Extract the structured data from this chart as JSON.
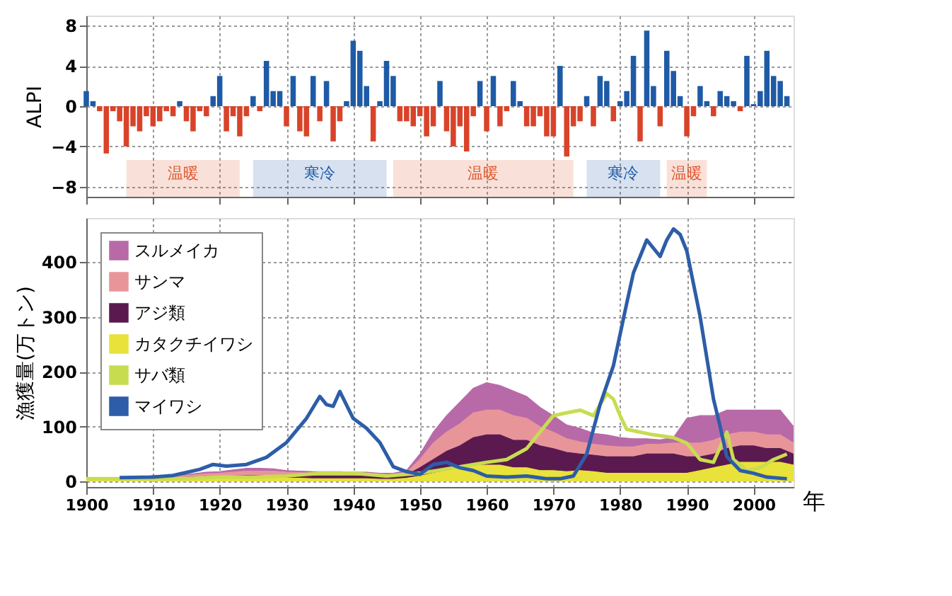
{
  "chart_data": [
    {
      "type": "bar",
      "ylabel": "ALPI",
      "x": [
        1900,
        1901,
        1902,
        1903,
        1904,
        1905,
        1906,
        1907,
        1908,
        1909,
        1910,
        1911,
        1912,
        1913,
        1914,
        1915,
        1916,
        1917,
        1918,
        1919,
        1920,
        1921,
        1922,
        1923,
        1924,
        1925,
        1926,
        1927,
        1928,
        1929,
        1930,
        1931,
        1932,
        1933,
        1934,
        1935,
        1936,
        1937,
        1938,
        1939,
        1940,
        1941,
        1942,
        1943,
        1944,
        1945,
        1946,
        1947,
        1948,
        1949,
        1950,
        1951,
        1952,
        1953,
        1954,
        1955,
        1956,
        1957,
        1958,
        1959,
        1960,
        1961,
        1962,
        1963,
        1964,
        1965,
        1966,
        1967,
        1968,
        1969,
        1970,
        1971,
        1972,
        1973,
        1974,
        1975,
        1976,
        1977,
        1978,
        1979,
        1980,
        1981,
        1982,
        1983,
        1984,
        1985,
        1986,
        1987,
        1988,
        1989,
        1990,
        1991,
        1992,
        1993,
        1994,
        1995,
        1996,
        1997,
        1998,
        1999,
        2000,
        2001,
        2002,
        2003,
        2004,
        2005
      ],
      "values": [
        1.5,
        0.5,
        -0.5,
        -4.7,
        -0.5,
        -1.5,
        -4,
        -2,
        -2.5,
        -1,
        -2,
        -1.5,
        -0.5,
        -1,
        0.5,
        -1.5,
        -2.5,
        -0.5,
        -1,
        1,
        3,
        -2.5,
        -1,
        -3,
        -1,
        1,
        -0.5,
        4.5,
        1.5,
        1.5,
        -2,
        3,
        -2.5,
        -3,
        3,
        -1.5,
        2.5,
        -3.5,
        -1.5,
        0.5,
        6.5,
        5.5,
        2,
        -3.5,
        0.5,
        4.5,
        3,
        -1.5,
        -1.5,
        -2,
        -1,
        -3,
        -2,
        2.5,
        -2.5,
        -4,
        -2,
        -4.5,
        -1,
        2.5,
        -2.5,
        3,
        -2,
        -0.5,
        2.5,
        0.5,
        -2,
        -2,
        -1,
        -3,
        -3,
        4,
        -5,
        -2,
        -1.5,
        1,
        -2,
        3,
        2.5,
        -1.5,
        0.5,
        1.5,
        5,
        -3.5,
        7.5,
        2,
        -2,
        5.5,
        3.5,
        1,
        -3,
        -1,
        2,
        0.5,
        -1,
        1.5,
        1,
        0.5,
        -0.5,
        5,
        0.2,
        1.5,
        5.5,
        3,
        2.5,
        1
      ],
      "colors": [
        "#1f5aa6",
        "#1f5aa6",
        "#d8432a",
        "#d8432a",
        "#d8432a",
        "#d8432a",
        "#d8432a",
        "#d8432a",
        "#d8432a",
        "#d8432a",
        "#d8432a",
        "#d8432a",
        "#d8432a",
        "#d8432a",
        "#1f5aa6",
        "#d8432a",
        "#d8432a",
        "#d8432a",
        "#d8432a",
        "#1f5aa6",
        "#1f5aa6",
        "#d8432a",
        "#d8432a",
        "#d8432a",
        "#d8432a",
        "#1f5aa6",
        "#d8432a",
        "#1f5aa6",
        "#1f5aa6",
        "#1f5aa6",
        "#d8432a",
        "#1f5aa6",
        "#d8432a",
        "#d8432a",
        "#1f5aa6",
        "#d8432a",
        "#1f5aa6",
        "#d8432a",
        "#d8432a",
        "#1f5aa6",
        "#1f5aa6",
        "#1f5aa6",
        "#1f5aa6",
        "#d8432a",
        "#1f5aa6",
        "#1f5aa6",
        "#1f5aa6",
        "#d8432a",
        "#d8432a",
        "#d8432a",
        "#d8432a",
        "#d8432a",
        "#d8432a",
        "#1f5aa6",
        "#d8432a",
        "#d8432a",
        "#d8432a",
        "#d8432a",
        "#d8432a",
        "#1f5aa6",
        "#d8432a",
        "#1f5aa6",
        "#d8432a",
        "#d8432a",
        "#1f5aa6",
        "#1f5aa6",
        "#d8432a",
        "#d8432a",
        "#d8432a",
        "#d8432a",
        "#d8432a",
        "#1f5aa6",
        "#d8432a",
        "#d8432a",
        "#d8432a",
        "#1f5aa6",
        "#d8432a",
        "#1f5aa6",
        "#1f5aa6",
        "#d8432a",
        "#1f5aa6",
        "#1f5aa6",
        "#1f5aa6",
        "#d8432a",
        "#1f5aa6",
        "#1f5aa6",
        "#d8432a",
        "#1f5aa6",
        "#1f5aa6",
        "#1f5aa6",
        "#d8432a",
        "#d8432a",
        "#1f5aa6",
        "#1f5aa6",
        "#d8432a",
        "#1f5aa6",
        "#1f5aa6",
        "#1f5aa6",
        "#d8432a",
        "#1f5aa6",
        "#1f5aa6",
        "#1f5aa6",
        "#1f5aa6",
        "#1f5aa6",
        "#1f5aa6",
        "#1f5aa6"
      ],
      "xlim": [
        1900,
        2006
      ],
      "xticks": [
        1900,
        1910,
        1920,
        1930,
        1940,
        1950,
        1960,
        1970,
        1980,
        1990,
        2000
      ],
      "ylim": [
        -9,
        9
      ],
      "yticks": [
        -8,
        -4,
        0,
        4,
        8
      ],
      "grid": true,
      "tick_labels": "y",
      "bands": [
        {
          "axis": "x",
          "from": 1906,
          "to": 1923,
          "label": "温暖",
          "color": "#e0562e"
        },
        {
          "axis": "x",
          "from": 1925,
          "to": 1945,
          "label": "寒冷",
          "color": "#1f5aa6"
        },
        {
          "axis": "x",
          "from": 1946,
          "to": 1973,
          "label": "温暖",
          "color": "#e0562e"
        },
        {
          "axis": "x",
          "from": 1975,
          "to": 1986,
          "label": "寒冷",
          "color": "#1f5aa6"
        },
        {
          "axis": "x",
          "from": 1987,
          "to": 1993,
          "label": "温暖",
          "color": "#e0562e"
        }
      ]
    },
    {
      "type": "area",
      "stacked": true,
      "ylabel": "漁獲量(万トン)",
      "xlabel": "年",
      "x": [
        1900,
        1902,
        1904,
        1906,
        1908,
        1910,
        1912,
        1914,
        1916,
        1918,
        1920,
        1922,
        1924,
        1926,
        1928,
        1930,
        1932,
        1934,
        1936,
        1938,
        1940,
        1942,
        1944,
        1946,
        1948,
        1950,
        1952,
        1954,
        1956,
        1958,
        1960,
        1962,
        1964,
        1966,
        1968,
        1970,
        1972,
        1974,
        1976,
        1978,
        1980,
        1982,
        1984,
        1986,
        1988,
        1990,
        1992,
        1994,
        1996,
        1998,
        2000,
        2002,
        2004,
        2006
      ],
      "series": [
        {
          "name": "カタクチイワシ",
          "type": "area",
          "color": "#e8e23a",
          "values": [
            3,
            3,
            3,
            3,
            3,
            4,
            4,
            4,
            5,
            5,
            5,
            6,
            6,
            6,
            6,
            6,
            6,
            5,
            5,
            5,
            5,
            5,
            4,
            4,
            6,
            10,
            15,
            20,
            25,
            30,
            30,
            30,
            25,
            25,
            20,
            20,
            18,
            20,
            18,
            15,
            15,
            15,
            15,
            15,
            15,
            15,
            20,
            25,
            30,
            35,
            35,
            35,
            35,
            30
          ]
        },
        {
          "name": "アジ類",
          "type": "area",
          "color": "#5a1a50",
          "values": [
            2,
            2,
            2,
            2,
            2,
            3,
            3,
            3,
            3,
            4,
            4,
            4,
            5,
            5,
            5,
            5,
            5,
            5,
            5,
            5,
            5,
            5,
            5,
            5,
            6,
            15,
            25,
            35,
            40,
            50,
            55,
            55,
            50,
            50,
            45,
            40,
            35,
            30,
            30,
            30,
            30,
            30,
            35,
            35,
            35,
            30,
            25,
            25,
            30,
            30,
            30,
            25,
            25,
            20
          ]
        },
        {
          "name": "サンマ",
          "type": "area",
          "color": "#e8959a",
          "values": [
            2,
            2,
            2,
            2,
            2,
            3,
            3,
            3,
            4,
            5,
            6,
            7,
            8,
            8,
            8,
            6,
            5,
            5,
            5,
            5,
            4,
            4,
            4,
            4,
            5,
            15,
            30,
            35,
            40,
            45,
            45,
            45,
            45,
            40,
            35,
            30,
            25,
            22,
            20,
            20,
            18,
            18,
            18,
            18,
            20,
            25,
            25,
            25,
            25,
            25,
            25,
            25,
            25,
            20
          ]
        },
        {
          "name": "スルメイカ",
          "type": "area",
          "color": "#b86aa8",
          "values": [
            0,
            0,
            0,
            0,
            0,
            1,
            1,
            1,
            2,
            3,
            3,
            4,
            5,
            5,
            4,
            3,
            3,
            3,
            3,
            3,
            3,
            3,
            2,
            2,
            3,
            10,
            20,
            30,
            40,
            45,
            50,
            45,
            45,
            40,
            35,
            30,
            25,
            25,
            20,
            20,
            17,
            15,
            10,
            8,
            10,
            45,
            50,
            45,
            45,
            40,
            40,
            45,
            45,
            30
          ]
        },
        {
          "name": "サバ類",
          "type": "line",
          "color": "#c8dc50",
          "x": [
            1900,
            1905,
            1910,
            1915,
            1920,
            1925,
            1930,
            1935,
            1940,
            1945,
            1950,
            1955,
            1960,
            1963,
            1966,
            1968,
            1970,
            1972,
            1974,
            1976,
            1978,
            1979,
            1980,
            1981,
            1983,
            1985,
            1988,
            1990,
            1992,
            1994,
            1996,
            1997,
            1999,
            2001,
            2003,
            2005
          ],
          "values": [
            5,
            5,
            5,
            5,
            8,
            8,
            10,
            15,
            15,
            10,
            15,
            25,
            35,
            40,
            60,
            90,
            120,
            125,
            130,
            120,
            160,
            150,
            120,
            95,
            90,
            85,
            80,
            70,
            40,
            35,
            90,
            40,
            20,
            25,
            40,
            50
          ]
        },
        {
          "name": "マイワシ",
          "type": "line",
          "color": "#2d5da8",
          "x": [
            1905,
            1910,
            1913,
            1917,
            1919,
            1921,
            1924,
            1927,
            1930,
            1933,
            1935,
            1936,
            1937,
            1938,
            1940,
            1942,
            1944,
            1946,
            1948,
            1950,
            1952,
            1954,
            1956,
            1958,
            1960,
            1963,
            1966,
            1969,
            1971,
            1973,
            1975,
            1977,
            1979,
            1981,
            1982,
            1984,
            1986,
            1987,
            1988,
            1989,
            1990,
            1991,
            1992,
            1994,
            1995,
            1996,
            1998,
            2000,
            2002,
            2005
          ],
          "values": [
            7,
            8,
            11,
            22,
            31,
            28,
            31,
            44,
            71,
            115,
            155,
            140,
            137,
            164,
            115,
            97,
            71,
            27,
            18,
            13,
            31,
            35,
            25,
            20,
            10,
            8,
            10,
            5,
            5,
            10,
            50,
            140,
            211,
            325,
            380,
            440,
            410,
            440,
            460,
            450,
            420,
            360,
            300,
            150,
            100,
            45,
            20,
            15,
            8,
            5
          ]
        }
      ],
      "xlim": [
        1900,
        2006
      ],
      "xticks": [
        1900,
        1910,
        1920,
        1930,
        1940,
        1950,
        1960,
        1970,
        1980,
        1990,
        2000
      ],
      "ylim": [
        -10,
        480
      ],
      "yticks": [
        0,
        100,
        200,
        300,
        400
      ],
      "grid": true,
      "legend": "top left",
      "line_style": "solid"
    }
  ]
}
